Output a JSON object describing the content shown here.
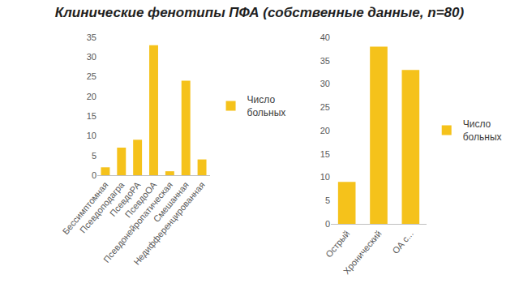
{
  "title": "Клинические фенотипы ПФА (собственные данные, n=80)",
  "chart_data": [
    {
      "type": "bar",
      "categories": [
        "Бессимптомная",
        "Псевдоподагра",
        "ПсевдоРА",
        "ПсевдоОА",
        "Псевдонейропатическая",
        "Смешанная",
        "Недифференцированная"
      ],
      "series": [
        {
          "name": "Число больных",
          "color": "#f5c21b",
          "values": [
            2,
            7,
            9,
            33,
            1,
            24,
            4
          ]
        }
      ],
      "ylim": [
        0,
        35
      ],
      "yticks": [
        0,
        5,
        10,
        15,
        20,
        25,
        30,
        35
      ],
      "grid": false,
      "legend": "right"
    },
    {
      "type": "bar",
      "categories": [
        "Острый",
        "Хронический",
        "ОА с..."
      ],
      "series": [
        {
          "name": "Число больных",
          "color": "#f5c21b",
          "values": [
            9,
            38,
            33
          ]
        }
      ],
      "ylim": [
        0,
        40
      ],
      "yticks": [
        0,
        5,
        10,
        15,
        20,
        25,
        30,
        35,
        40
      ],
      "grid": false,
      "legend": "right"
    }
  ]
}
